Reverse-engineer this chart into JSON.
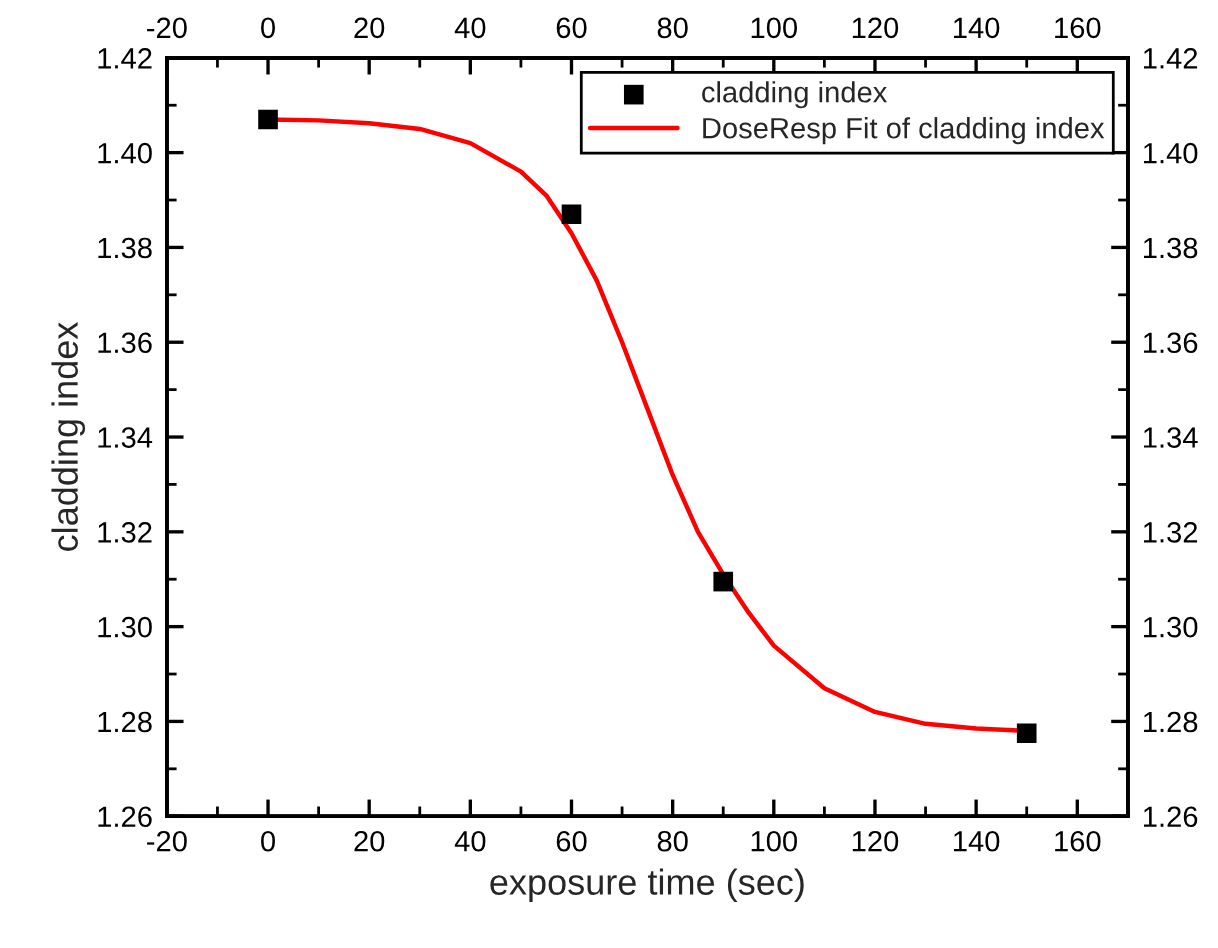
{
  "chart_data": {
    "type": "scatter",
    "xlabel": "exposure time (sec)",
    "ylabel": "cladding index",
    "series": [
      {
        "name": "cladding index",
        "color": "#000000",
        "marker": "square",
        "x": [
          0,
          60,
          90,
          150
        ],
        "values": [
          1.407,
          1.387,
          1.3095,
          1.2775
        ]
      },
      {
        "name": "DoseResp Fit of cladding index",
        "type": "line",
        "color": "#ff0000",
        "marker": "none",
        "line_style": "solid",
        "x": [
          0,
          10,
          20,
          30,
          40,
          50,
          55,
          60,
          65,
          70,
          75,
          80,
          85,
          90,
          95,
          100,
          110,
          120,
          130,
          140,
          150
        ],
        "values": [
          1.407,
          1.4068,
          1.4062,
          1.405,
          1.402,
          1.396,
          1.391,
          1.383,
          1.373,
          1.36,
          1.346,
          1.332,
          1.32,
          1.311,
          1.303,
          1.296,
          1.287,
          1.282,
          1.2795,
          1.2785,
          1.278
        ]
      }
    ],
    "xlim": [
      -20,
      170
    ],
    "xticks": [
      -20,
      0,
      20,
      40,
      60,
      80,
      100,
      120,
      140,
      160
    ],
    "x2lim": [
      -20,
      170
    ],
    "x2ticks": [
      -20,
      0,
      20,
      40,
      60,
      80,
      100,
      120,
      140,
      160
    ],
    "ylim": [
      1.26,
      1.42
    ],
    "yticks": [
      1.26,
      1.28,
      {
        "value": 1.3,
        "label": "1.30"
      },
      1.32,
      1.34,
      1.36,
      1.38,
      {
        "value": 1.4,
        "label": "1.40"
      },
      1.42
    ],
    "y2lim": [
      1.26,
      1.42
    ],
    "y2ticks": [
      1.26,
      1.28,
      {
        "value": 1.3,
        "label": "1.30"
      },
      1.32,
      1.34,
      1.36,
      1.38,
      {
        "value": 1.4,
        "label": "1.40"
      },
      1.42
    ],
    "legend": "top right",
    "grid": false
  }
}
